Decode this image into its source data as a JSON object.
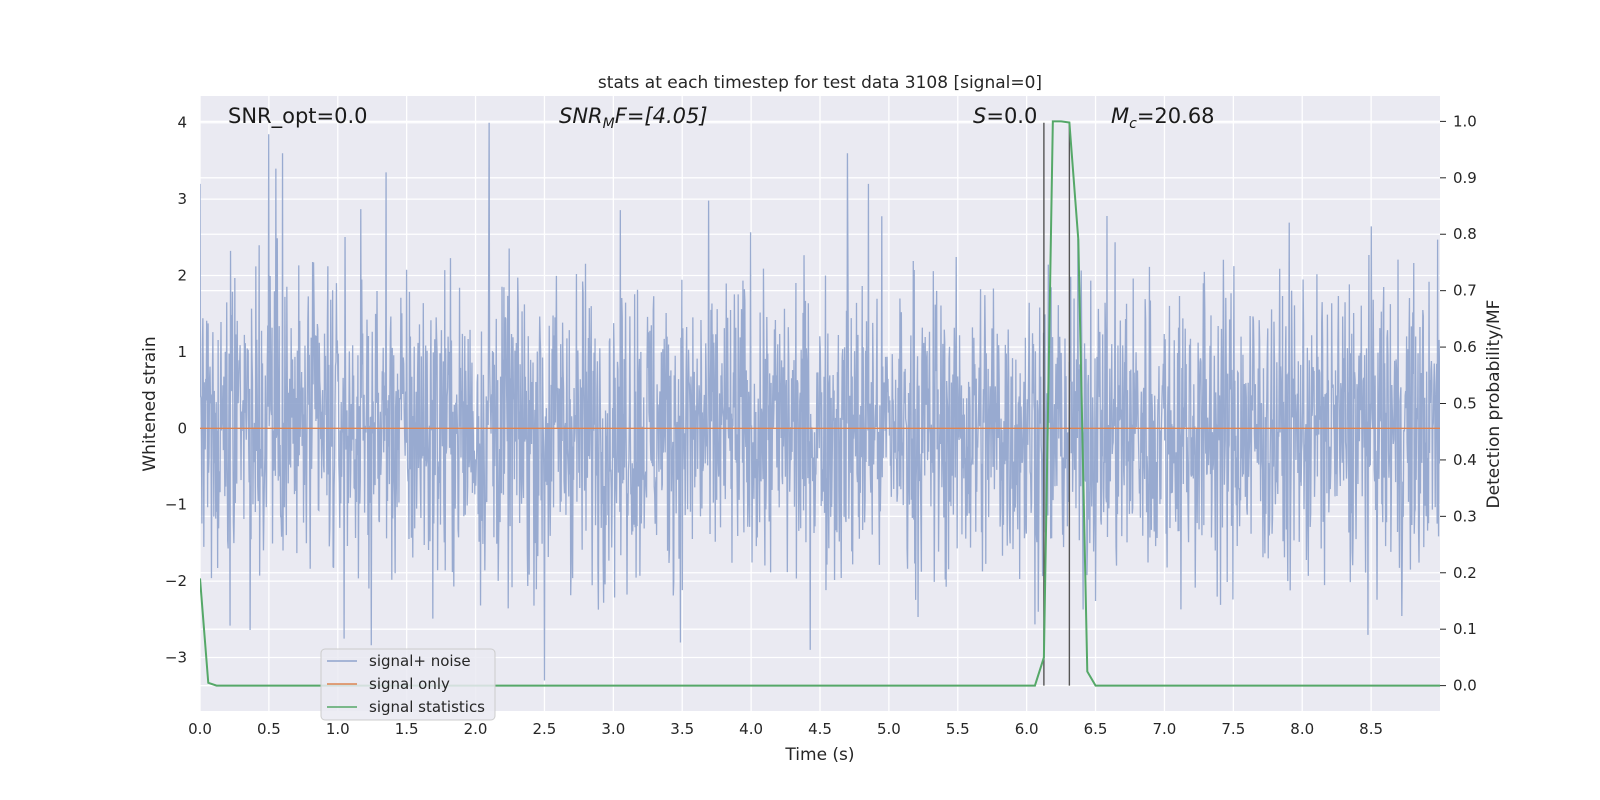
{
  "chart_data": {
    "type": "line",
    "title": "stats at each timestep for test data 3108 [signal=0]",
    "xlabel": "Time (s)",
    "ylabel_left": "Whitened strain",
    "ylabel_right": "Detection probability/MF",
    "xlim": [
      0.0,
      9.0
    ],
    "ylim_left": [
      -3.7,
      4.35
    ],
    "ylim_right": [
      -0.045,
      1.045
    ],
    "x_ticks": [
      0.0,
      0.5,
      1.0,
      1.5,
      2.0,
      2.5,
      3.0,
      3.5,
      4.0,
      4.5,
      5.0,
      5.5,
      6.0,
      6.5,
      7.0,
      7.5,
      8.0,
      8.5
    ],
    "x_tick_labels": [
      "0.0",
      "0.5",
      "1.0",
      "1.5",
      "2.0",
      "2.5",
      "3.0",
      "3.5",
      "4.0",
      "4.5",
      "5.0",
      "5.5",
      "6.0",
      "6.5",
      "7.0",
      "7.5",
      "8.0",
      "8.5"
    ],
    "y_left_ticks": [
      -3,
      -2,
      -1,
      0,
      1,
      2,
      3,
      4
    ],
    "y_left_tick_labels": [
      "−3",
      "−2",
      "−1",
      "0",
      "1",
      "2",
      "3",
      "4"
    ],
    "y_right_ticks": [
      0.0,
      0.1,
      0.2,
      0.3,
      0.4,
      0.5,
      0.6,
      0.7,
      0.8,
      0.9,
      1.0
    ],
    "y_right_tick_labels": [
      "0.0",
      "0.1",
      "0.2",
      "0.3",
      "0.4",
      "0.5",
      "0.6",
      "0.7",
      "0.8",
      "0.9",
      "1.0"
    ],
    "grid": true,
    "legend_position": "lower-left",
    "annotations": {
      "snr_opt": "SNR_opt=0.0",
      "snr_mf_base": "SNR",
      "snr_mf_sub": "M",
      "snr_mf_rest": "F=[4.05]",
      "s_italic": "S",
      "s_rest": "=0.0",
      "mc_base": "M",
      "mc_sub": "c",
      "mc_rest": "=20.68"
    },
    "vertical_lines_x": [
      6.125,
      6.31
    ],
    "series": [
      {
        "name": "signal+ noise",
        "color": "#8fa3cc",
        "axis": "left",
        "description_peaks": {
          "x": [
            0.0,
            0.5,
            0.55,
            0.6,
            1.35,
            2.1,
            2.5,
            4.7,
            4.85
          ],
          "y": [
            3.2,
            3.85,
            3.4,
            3.6,
            3.35,
            4.0,
            -3.3,
            3.6,
            3.2
          ]
        },
        "typical_amplitude": 1.6
      },
      {
        "name": "signal only",
        "color": "#dd8452",
        "axis": "left",
        "x": [
          0.0,
          9.0
        ],
        "y": [
          0.0,
          0.0
        ]
      },
      {
        "name": "signal statistics",
        "color": "#55a868",
        "axis": "right",
        "x": [
          0.0,
          0.06,
          0.12,
          6.06,
          6.125,
          6.19,
          6.25,
          6.31,
          6.375,
          6.44,
          6.5,
          9.0
        ],
        "y": [
          0.19,
          0.005,
          0.0,
          0.0,
          0.05,
          1.0,
          1.0,
          0.998,
          0.79,
          0.025,
          0.0,
          0.0
        ]
      }
    ]
  }
}
